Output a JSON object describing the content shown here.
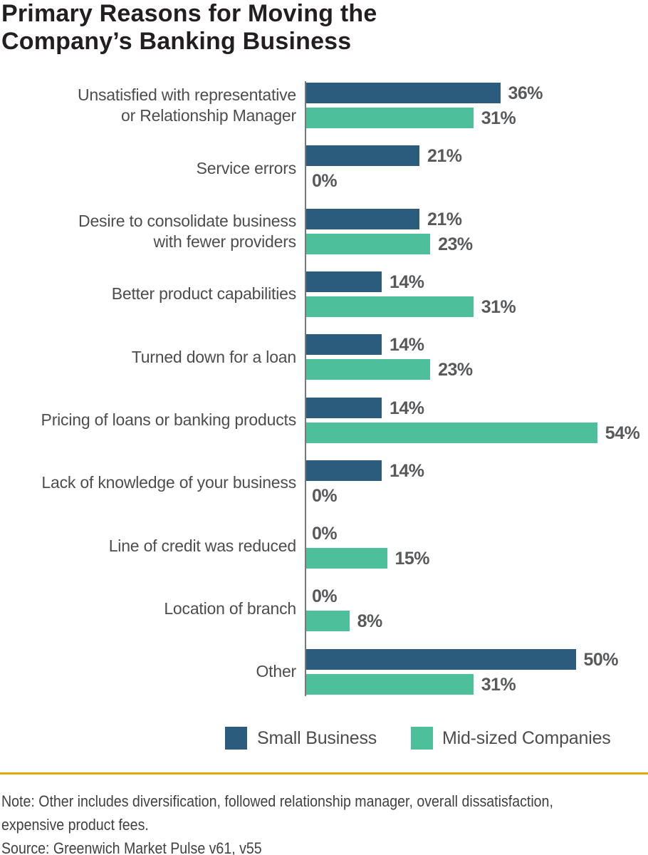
{
  "title_lines": [
    "Primary Reasons for Moving the",
    "Company’s Banking Business"
  ],
  "chart_data": {
    "type": "bar",
    "orientation": "horizontal",
    "value_suffix": "%",
    "grid": false,
    "legend_position": "bottom",
    "axis_range_pct": [
      0,
      60
    ],
    "categories": [
      "Unsatisfied with representative\nor Relationship Manager",
      "Service errors",
      "Desire to consolidate business\nwith fewer providers",
      "Better product capabilities",
      "Turned down for a loan",
      "Pricing of loans or banking products",
      "Lack of knowledge of your business",
      "Line of credit was reduced",
      "Location of branch",
      "Other"
    ],
    "series": [
      {
        "name": "Small Business",
        "color": "#2C5C7D",
        "values": [
          36,
          21,
          21,
          14,
          14,
          14,
          14,
          0,
          0,
          50
        ]
      },
      {
        "name": "Mid-sized Companies",
        "color": "#4DC09B",
        "values": [
          31,
          0,
          23,
          31,
          23,
          54,
          0,
          15,
          8,
          31
        ]
      }
    ]
  },
  "footer": {
    "note_lines": [
      "Note: Other includes diversification, followed relationship manager, overall dissatisfaction,",
      "expensive product fees."
    ],
    "source": "Source: Greenwich Market Pulse v61, v55"
  },
  "colors": {
    "title": "#231F20",
    "category_label": "#4D4D4F",
    "value_label": "#58595B",
    "axis": "#77787B",
    "divider": "#E2A90E",
    "footer_text": "#414042"
  }
}
